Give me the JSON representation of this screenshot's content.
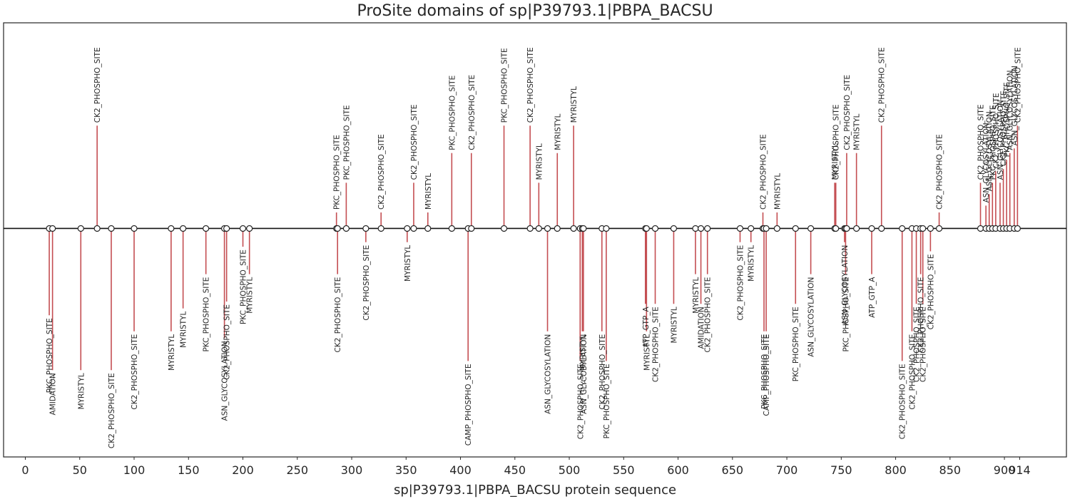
{
  "chart_data": {
    "type": "stem",
    "title": "ProSite domains of sp|P39793.1|PBPA_BACSU",
    "xlabel": "sp|P39793.1|PBPA_BACSU protein sequence",
    "xlim": [
      -20,
      957
    ],
    "ylim": [
      -1.0,
      0.9
    ],
    "x_ticks": [
      0,
      50,
      100,
      150,
      200,
      250,
      300,
      350,
      400,
      450,
      500,
      550,
      600,
      650,
      700,
      750,
      800,
      850,
      900,
      914
    ],
    "features": [
      {
        "x": 22,
        "y": -0.38,
        "label": "PKC_PHOSPHO_SITE"
      },
      {
        "x": 25,
        "y": -0.62,
        "label": "AMIDATION"
      },
      {
        "x": 51,
        "y": -0.62,
        "label": "MYRISTYL"
      },
      {
        "x": 66,
        "y": 0.45,
        "label": "CK2_PHOSPHO_SITE"
      },
      {
        "x": 79,
        "y": -0.62,
        "label": "CK2_PHOSPHO_SITE"
      },
      {
        "x": 100,
        "y": -0.45,
        "label": "CK2_PHOSPHO_SITE"
      },
      {
        "x": 134,
        "y": -0.45,
        "label": "MYRISTYL"
      },
      {
        "x": 145,
        "y": -0.35,
        "label": "MYRISTYL"
      },
      {
        "x": 166,
        "y": -0.2,
        "label": "PKC_PHOSPHO_SITE"
      },
      {
        "x": 183,
        "y": -0.48,
        "label": "ASN_GLYCOSYLATION"
      },
      {
        "x": 185,
        "y": -0.32,
        "label": "CK2_PHOSPHO_SITE"
      },
      {
        "x": 200,
        "y": -0.08,
        "label": "PKC_PHOSPHO_SITE"
      },
      {
        "x": 206,
        "y": -0.2,
        "label": "MYRISTYL"
      },
      {
        "x": 286,
        "y": 0.07,
        "label": "PKC_PHOSPHO_SITE"
      },
      {
        "x": 287,
        "y": -0.2,
        "label": "CK2_PHOSPHO_SITE"
      },
      {
        "x": 295,
        "y": 0.2,
        "label": "PKC_PHOSPHO_SITE"
      },
      {
        "x": 313,
        "y": -0.06,
        "label": "CK2_PHOSPHO_SITE"
      },
      {
        "x": 327,
        "y": 0.07,
        "label": "CK2_PHOSPHO_SITE"
      },
      {
        "x": 351,
        "y": -0.06,
        "label": "MYRISTYL"
      },
      {
        "x": 357,
        "y": 0.2,
        "label": "CK2_PHOSPHO_SITE"
      },
      {
        "x": 370,
        "y": 0.07,
        "label": "MYRISTYL"
      },
      {
        "x": 392,
        "y": 0.33,
        "label": "PKC_PHOSPHO_SITE"
      },
      {
        "x": 407,
        "y": -0.58,
        "label": "CAMP_PHOSPHO_SITE"
      },
      {
        "x": 410,
        "y": 0.33,
        "label": "CK2_PHOSPHO_SITE"
      },
      {
        "x": 440,
        "y": 0.45,
        "label": "PKC_PHOSPHO_SITE"
      },
      {
        "x": 464,
        "y": 0.45,
        "label": "CK2_PHOSPHO_SITE"
      },
      {
        "x": 472,
        "y": 0.2,
        "label": "MYRISTYL"
      },
      {
        "x": 480,
        "y": -0.45,
        "label": "ASN_GLYCOSYLATION"
      },
      {
        "x": 489,
        "y": 0.33,
        "label": "MYRISTYL"
      },
      {
        "x": 504,
        "y": 0.45,
        "label": "MYRISTYL"
      },
      {
        "x": 510,
        "y": -0.58,
        "label": "CK2_PHOSPHO_SITE"
      },
      {
        "x": 512,
        "y": -0.45,
        "label": "MYRISTYL"
      },
      {
        "x": 513,
        "y": -0.45,
        "label": "ASN_GLYCOSYLATION"
      },
      {
        "x": 530,
        "y": -0.45,
        "label": "CK2_PHOSPHO_SITE"
      },
      {
        "x": 534,
        "y": -0.58,
        "label": "PKC_PHOSPHO_SITE"
      },
      {
        "x": 570,
        "y": -0.33,
        "label": "ATP_GTP_A"
      },
      {
        "x": 571,
        "y": -0.45,
        "label": "MYRISTYL"
      },
      {
        "x": 579,
        "y": -0.33,
        "label": "CK2_PHOSPHO_SITE"
      },
      {
        "x": 596,
        "y": -0.33,
        "label": "MYRISTYL"
      },
      {
        "x": 616,
        "y": -0.2,
        "label": "MYRISTYL"
      },
      {
        "x": 621,
        "y": -0.33,
        "label": "AMIDATION"
      },
      {
        "x": 627,
        "y": -0.2,
        "label": "CK2_PHOSPHO_SITE"
      },
      {
        "x": 657,
        "y": -0.06,
        "label": "CK2_PHOSPHO_SITE"
      },
      {
        "x": 667,
        "y": -0.06,
        "label": "MYRISTYL"
      },
      {
        "x": 678,
        "y": 0.07,
        "label": "CK2_PHOSPHO_SITE"
      },
      {
        "x": 679,
        "y": -0.45,
        "label": "PKC_PHOSPHO_SITE"
      },
      {
        "x": 681,
        "y": -0.45,
        "label": "CAMP_PHOSPHO_SITE"
      },
      {
        "x": 691,
        "y": 0.07,
        "label": "MYRISTYL"
      },
      {
        "x": 708,
        "y": -0.33,
        "label": "PKC_PHOSPHO_SITE"
      },
      {
        "x": 722,
        "y": -0.2,
        "label": "ASN_GLYCOSYLATION"
      },
      {
        "x": 744,
        "y": 0.2,
        "label": "MYRISTYL"
      },
      {
        "x": 745,
        "y": 0.2,
        "label": "CK2_PHOSPHO_SITE"
      },
      {
        "x": 753,
        "y": -0.06,
        "label": "ASN_GLYCOSYLATION"
      },
      {
        "x": 754,
        "y": -0.2,
        "label": "PKC_PHOSPHO_SITE"
      },
      {
        "x": 755,
        "y": 0.33,
        "label": "CK2_PHOSPHO_SITE"
      },
      {
        "x": 764,
        "y": 0.33,
        "label": "MYRISTYL"
      },
      {
        "x": 778,
        "y": -0.2,
        "label": "ATP_GTP_A"
      },
      {
        "x": 787,
        "y": 0.45,
        "label": "CK2_PHOSPHO_SITE"
      },
      {
        "x": 806,
        "y": -0.58,
        "label": "CK2_PHOSPHO_SITE"
      },
      {
        "x": 815,
        "y": -0.45,
        "label": "CK2_PHOSPHO_SITE"
      },
      {
        "x": 819,
        "y": -0.33,
        "label": "CK2_PHOSPHO_SITE"
      },
      {
        "x": 823,
        "y": -0.2,
        "label": "CK2_PHOSPHO_SITE"
      },
      {
        "x": 825,
        "y": -0.33,
        "label": "CK2_PHOSPHO_SITE"
      },
      {
        "x": 832,
        "y": -0.1,
        "label": "CK2_PHOSPHO_SITE"
      },
      {
        "x": 840,
        "y": 0.07,
        "label": "CK2_PHOSPHO_SITE"
      },
      {
        "x": 878,
        "y": 0.2,
        "label": "CK2_PHOSPHO_SITE"
      },
      {
        "x": 883,
        "y": 0.1,
        "label": "ASN_GLYCOSYLATION"
      },
      {
        "x": 886,
        "y": 0.15,
        "label": "ASN_GLYCOSYLATION"
      },
      {
        "x": 889,
        "y": 0.2,
        "label": "PKC_PHOSPHO_SITE"
      },
      {
        "x": 892,
        "y": 0.25,
        "label": "CK2_PHOSPHO_SITE"
      },
      {
        "x": 896,
        "y": 0.2,
        "label": "ASN_GLYCOSYLATION"
      },
      {
        "x": 899,
        "y": 0.26,
        "label": "CK2_PHOSPHO_SITE"
      },
      {
        "x": 902,
        "y": 0.3,
        "label": "PKC_PHOSPHO_SITE"
      },
      {
        "x": 905,
        "y": 0.33,
        "label": "ASN_GLYCOSYLATION"
      },
      {
        "x": 909,
        "y": 0.35,
        "label": "ASN_GLYCOSYLATION"
      },
      {
        "x": 912,
        "y": 0.45,
        "label": "CK2_PHOSPHO_SITE"
      }
    ]
  }
}
